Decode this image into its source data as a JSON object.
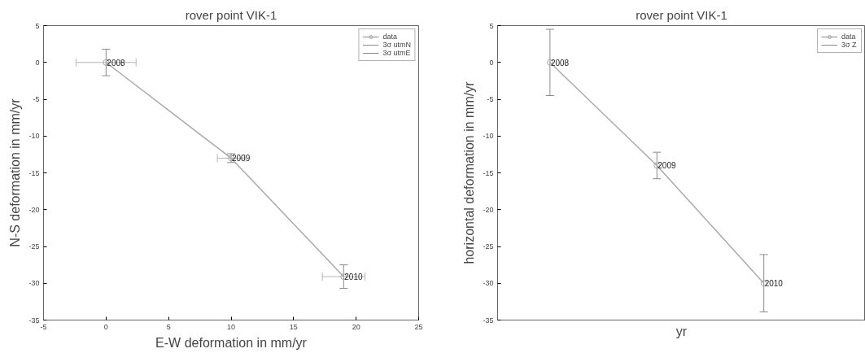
{
  "chart_data": [
    {
      "type": "line",
      "title": "rover point VIK-1",
      "xlabel": "E-W deformation in mm/yr",
      "ylabel": "N-S deformation in mm/yr",
      "x": [
        0,
        10,
        19
      ],
      "xlim": [
        -5,
        25
      ],
      "xticks": [
        -5,
        0,
        5,
        10,
        15,
        20,
        25
      ],
      "ylim": [
        -35,
        5
      ],
      "yticks": [
        -35,
        -30,
        -25,
        -20,
        -15,
        -10,
        -5,
        0,
        5
      ],
      "series": [
        {
          "name": "data",
          "color": "#aaaaaa",
          "values": [
            0,
            -13,
            -29.1
          ],
          "errors": [
            1.8,
            0.6,
            1.6
          ],
          "xerrors": [
            2.4,
            1.1,
            1.7
          ]
        }
      ],
      "marker": "circle",
      "line_style": "solid",
      "grid": false,
      "legend": "top right",
      "annotations": [
        {
          "text": "2008",
          "x": 0,
          "y": 0
        },
        {
          "text": "2009",
          "x": 10,
          "y": -13
        },
        {
          "text": "2010",
          "x": 19,
          "y": -29.1
        },
        "3σ utmN",
        "3σ utmE"
      ]
    },
    {
      "type": "line",
      "title": "rover point VIK-1",
      "xlabel": "yr",
      "ylabel": "horizontal deformation in mm/yr",
      "categories": [
        null,
        null,
        null
      ],
      "ylim": [
        -35,
        5
      ],
      "yticks": [
        -35,
        -30,
        -25,
        -20,
        -15,
        -10,
        -5,
        0,
        5
      ],
      "tick_labels": "y",
      "series": [
        {
          "name": "data",
          "color": "#aaaaaa",
          "values": [
            0,
            -14,
            -30
          ],
          "errors": [
            4.5,
            1.8,
            3.9
          ]
        }
      ],
      "marker": "circle",
      "line_style": "solid",
      "grid": false,
      "legend": "top right",
      "annotations": [
        "2008",
        "2009",
        "2010",
        "3σ Z"
      ]
    }
  ]
}
